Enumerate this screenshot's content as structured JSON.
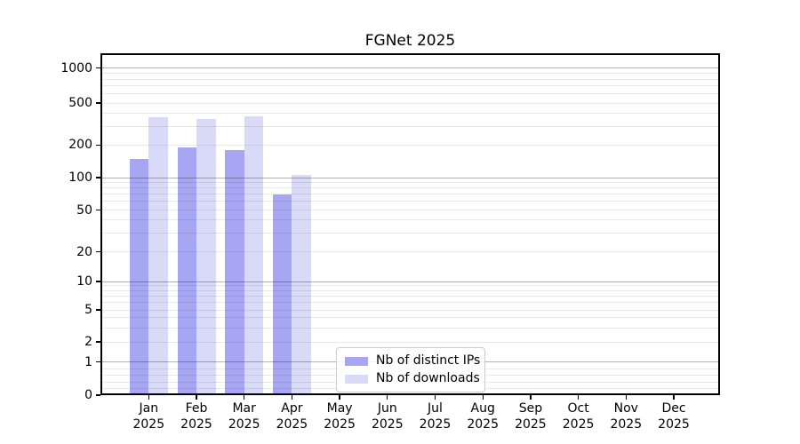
{
  "figure": {
    "background": "#ffffff"
  },
  "chart_data": {
    "type": "bar",
    "title": "FGNet 2025",
    "xlabel": "",
    "ylabel": "",
    "year_label": "2025",
    "categories": [
      "Jan",
      "Feb",
      "Mar",
      "Apr",
      "May",
      "Jun",
      "Jul",
      "Aug",
      "Sep",
      "Oct",
      "Nov",
      "Dec"
    ],
    "series": [
      {
        "name": "Nb of distinct IPs",
        "key": "distinct-ips",
        "color": "#a6a6f2",
        "values": [
          150,
          190,
          180,
          70,
          null,
          null,
          null,
          null,
          null,
          null,
          null,
          null
        ]
      },
      {
        "name": "Nb of downloads",
        "key": "downloads",
        "color": "#d9d9f8",
        "values": [
          365,
          350,
          375,
          105,
          null,
          null,
          null,
          null,
          null,
          null,
          null,
          null
        ]
      }
    ],
    "yscale": "symlog",
    "y_ticks": [
      0,
      1,
      2,
      5,
      10,
      20,
      50,
      100,
      200,
      500,
      1000
    ],
    "y_major_gridlines": [
      1,
      10,
      100,
      1000
    ],
    "ylim": [
      0,
      1400
    ],
    "grid": true,
    "legend_position": "lower center",
    "colors": {
      "grid_major": "#b0b0b0",
      "grid_minor": "#e9e9e9",
      "axis": "#000000",
      "background": "#ffffff"
    }
  }
}
